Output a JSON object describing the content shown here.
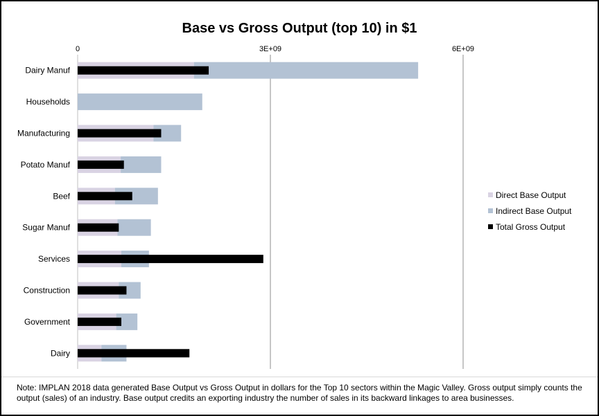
{
  "chart_data": {
    "type": "bar",
    "orientation": "horizontal",
    "title": "Base vs Gross Output (top 10) in $1",
    "xlabel": "",
    "ylabel": "",
    "xlim": [
      0,
      6000000000
    ],
    "x_ticks": [
      0,
      3000000000,
      6000000000
    ],
    "x_tick_labels": [
      "0",
      "3E+09",
      "6E+09"
    ],
    "x_axis_position": "top",
    "grid": true,
    "legend_position": "right",
    "categories": [
      "Dairy Manuf",
      "Households",
      "Manufacturing",
      "Potato Manuf",
      "Beef",
      "Sugar Manuf",
      "Services",
      "Construction",
      "Government",
      "Dairy"
    ],
    "series": [
      {
        "name": "Direct Base Output",
        "color": "#d9d3e3",
        "values": [
          1810000000,
          0,
          1180000000,
          670000000,
          580000000,
          620000000,
          680000000,
          640000000,
          600000000,
          370000000
        ]
      },
      {
        "name": "Indirect Base Output",
        "color": "#b3c2d4",
        "values": [
          3490000000,
          1940000000,
          430000000,
          630000000,
          670000000,
          520000000,
          430000000,
          340000000,
          330000000,
          390000000
        ]
      },
      {
        "name": "Total Gross Output",
        "color": "#000000",
        "values": [
          2040000000,
          0,
          1300000000,
          720000000,
          850000000,
          640000000,
          2890000000,
          760000000,
          680000000,
          1740000000
        ]
      }
    ]
  },
  "note": "Note: IMPLAN 2018 data generated Base Output vs Gross Output in dollars for the Top 10 sectors within the Magic Valley. Gross output simply counts the output (sales) of an industry. Base output credits an exporting industry the number of sales in its backward linkages to area businesses."
}
